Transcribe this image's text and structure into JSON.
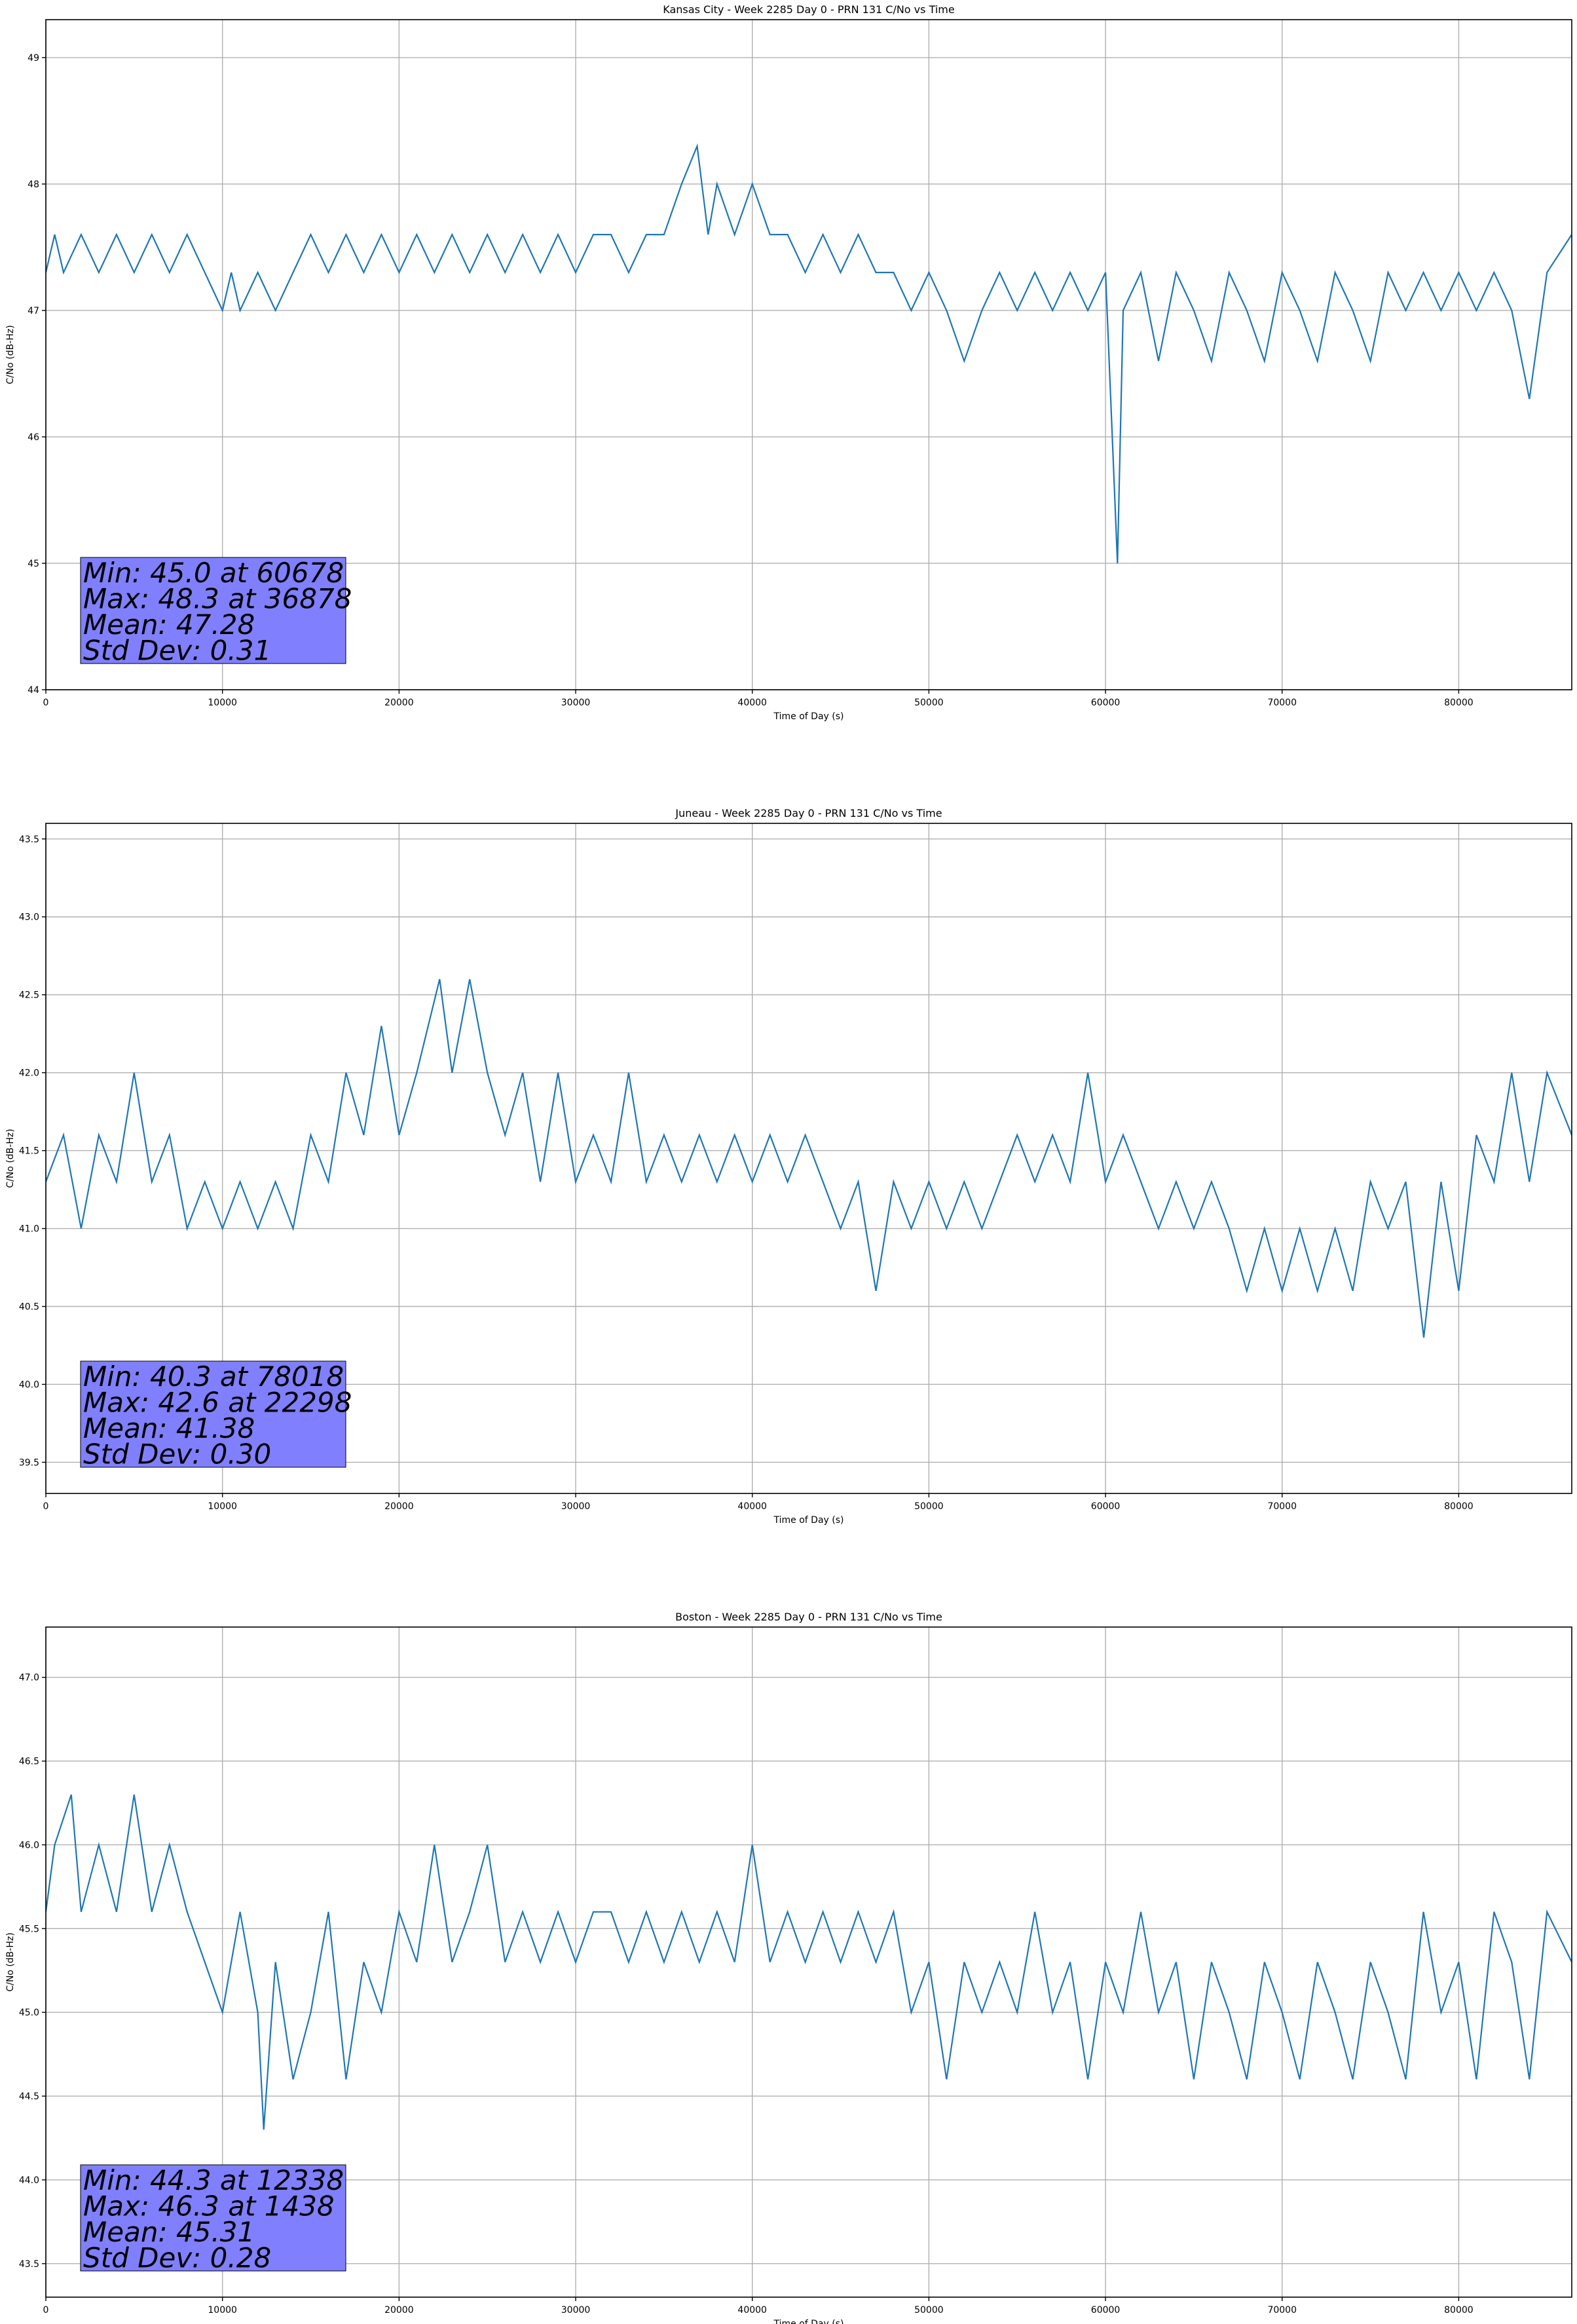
{
  "chart_data": [
    {
      "type": "line",
      "title": "Kansas City - Week 2285 Day 0 - PRN 131 C/No vs Time",
      "xlabel": "Time of Day (s)",
      "ylabel": "C/No (dB-Hz)",
      "xlim": [
        0,
        86400
      ],
      "ylim": [
        44.0,
        49.3
      ],
      "xticks": [
        0,
        10000,
        20000,
        30000,
        40000,
        50000,
        60000,
        70000,
        80000
      ],
      "yticks": [
        44,
        45,
        46,
        47,
        48,
        49
      ],
      "ytick_labels": [
        "44",
        "45",
        "46",
        "47",
        "48",
        "49"
      ],
      "grid": true,
      "line_color": "#1f77b4",
      "stats": [
        "Min: 45.0 at 60678",
        "Max: 48.3 at 36878",
        "Mean: 47.28",
        "Std Dev: 0.31"
      ],
      "series": [
        {
          "name": "C/No",
          "x": [
            0,
            500,
            1000,
            2000,
            3000,
            4000,
            5000,
            6000,
            7000,
            8000,
            9000,
            10000,
            10500,
            11000,
            12000,
            13000,
            14000,
            15000,
            16000,
            17000,
            18000,
            19000,
            20000,
            21000,
            22000,
            23000,
            24000,
            25000,
            26000,
            27000,
            28000,
            29000,
            30000,
            31000,
            32000,
            33000,
            34000,
            35000,
            36000,
            36878,
            37500,
            38000,
            39000,
            40000,
            41000,
            42000,
            43000,
            44000,
            45000,
            46000,
            47000,
            48000,
            49000,
            50000,
            51000,
            52000,
            53000,
            54000,
            55000,
            56000,
            57000,
            58000,
            59000,
            60000,
            60678,
            61000,
            62000,
            63000,
            64000,
            65000,
            66000,
            67000,
            68000,
            69000,
            70000,
            71000,
            72000,
            73000,
            74000,
            75000,
            76000,
            77000,
            78000,
            79000,
            80000,
            81000,
            82000,
            83000,
            84000,
            85000,
            86400
          ],
          "y": [
            47.3,
            47.6,
            47.3,
            47.6,
            47.3,
            47.6,
            47.3,
            47.6,
            47.3,
            47.6,
            47.3,
            47.0,
            47.3,
            47.0,
            47.3,
            47.0,
            47.3,
            47.6,
            47.3,
            47.6,
            47.3,
            47.6,
            47.3,
            47.6,
            47.3,
            47.6,
            47.3,
            47.6,
            47.3,
            47.6,
            47.3,
            47.6,
            47.3,
            47.6,
            47.6,
            47.3,
            47.6,
            47.6,
            48.0,
            48.3,
            47.6,
            48.0,
            47.6,
            48.0,
            47.6,
            47.6,
            47.3,
            47.6,
            47.3,
            47.6,
            47.3,
            47.3,
            47.0,
            47.3,
            47.0,
            46.6,
            47.0,
            47.3,
            47.0,
            47.3,
            47.0,
            47.3,
            47.0,
            47.3,
            45.0,
            47.0,
            47.3,
            46.6,
            47.3,
            47.0,
            46.6,
            47.3,
            47.0,
            46.6,
            47.3,
            47.0,
            46.6,
            47.3,
            47.0,
            46.6,
            47.3,
            47.0,
            47.3,
            47.0,
            47.3,
            47.0,
            47.3,
            47.0,
            46.3,
            47.3,
            47.6
          ]
        }
      ]
    },
    {
      "type": "line",
      "title": "Juneau - Week 2285 Day 0 - PRN 131 C/No vs Time",
      "xlabel": "Time of Day (s)",
      "ylabel": "C/No (dB-Hz)",
      "xlim": [
        0,
        86400
      ],
      "ylim": [
        39.3,
        43.6
      ],
      "xticks": [
        0,
        10000,
        20000,
        30000,
        40000,
        50000,
        60000,
        70000,
        80000
      ],
      "yticks": [
        39.5,
        40.0,
        40.5,
        41.0,
        41.5,
        42.0,
        42.5,
        43.0,
        43.5
      ],
      "ytick_labels": [
        "39.5",
        "40.0",
        "40.5",
        "41.0",
        "41.5",
        "42.0",
        "42.5",
        "43.0",
        "43.5"
      ],
      "grid": true,
      "line_color": "#1f77b4",
      "stats": [
        "Min: 40.3 at 78018",
        "Max: 42.6 at 22298",
        "Mean: 41.38",
        "Std Dev: 0.30"
      ],
      "series": [
        {
          "name": "C/No",
          "x": [
            0,
            1000,
            2000,
            3000,
            4000,
            5000,
            6000,
            7000,
            8000,
            9000,
            10000,
            11000,
            12000,
            13000,
            14000,
            15000,
            16000,
            17000,
            18000,
            19000,
            20000,
            21000,
            22298,
            23000,
            24000,
            25000,
            26000,
            27000,
            28000,
            29000,
            30000,
            31000,
            32000,
            33000,
            34000,
            35000,
            36000,
            37000,
            38000,
            39000,
            40000,
            41000,
            42000,
            43000,
            44000,
            45000,
            46000,
            47000,
            48000,
            49000,
            50000,
            51000,
            52000,
            53000,
            54000,
            55000,
            56000,
            57000,
            58000,
            59000,
            60000,
            61000,
            62000,
            63000,
            64000,
            65000,
            66000,
            67000,
            68000,
            69000,
            70000,
            71000,
            72000,
            73000,
            74000,
            75000,
            76000,
            77000,
            78018,
            79000,
            80000,
            81000,
            82000,
            83000,
            84000,
            85000,
            86400
          ],
          "y": [
            41.3,
            41.6,
            41.0,
            41.6,
            41.3,
            42.0,
            41.3,
            41.6,
            41.0,
            41.3,
            41.0,
            41.3,
            41.0,
            41.3,
            41.0,
            41.6,
            41.3,
            42.0,
            41.6,
            42.3,
            41.6,
            42.0,
            42.6,
            42.0,
            42.6,
            42.0,
            41.6,
            42.0,
            41.3,
            42.0,
            41.3,
            41.6,
            41.3,
            42.0,
            41.3,
            41.6,
            41.3,
            41.6,
            41.3,
            41.6,
            41.3,
            41.6,
            41.3,
            41.6,
            41.3,
            41.0,
            41.3,
            40.6,
            41.3,
            41.0,
            41.3,
            41.0,
            41.3,
            41.0,
            41.3,
            41.6,
            41.3,
            41.6,
            41.3,
            42.0,
            41.3,
            41.6,
            41.3,
            41.0,
            41.3,
            41.0,
            41.3,
            41.0,
            40.6,
            41.0,
            40.6,
            41.0,
            40.6,
            41.0,
            40.6,
            41.3,
            41.0,
            41.3,
            40.3,
            41.3,
            40.6,
            41.6,
            41.3,
            42.0,
            41.3,
            42.0,
            41.6
          ]
        }
      ]
    },
    {
      "type": "line",
      "title": "Boston - Week 2285 Day 0 - PRN 131 C/No vs Time",
      "xlabel": "Time of Day (s)",
      "ylabel": "C/No (dB-Hz)",
      "xlim": [
        0,
        86400
      ],
      "ylim": [
        43.3,
        47.3
      ],
      "xticks": [
        0,
        10000,
        20000,
        30000,
        40000,
        50000,
        60000,
        70000,
        80000
      ],
      "yticks": [
        43.5,
        44.0,
        44.5,
        45.0,
        45.5,
        46.0,
        46.5,
        47.0
      ],
      "ytick_labels": [
        "43.5",
        "44.0",
        "44.5",
        "45.0",
        "45.5",
        "46.0",
        "46.5",
        "47.0"
      ],
      "grid": true,
      "line_color": "#1f77b4",
      "stats": [
        "Min: 44.3 at 12338",
        "Max: 46.3 at 1438",
        "Mean: 45.31",
        "Std Dev: 0.28"
      ],
      "series": [
        {
          "name": "C/No",
          "x": [
            0,
            500,
            1438,
            2000,
            3000,
            4000,
            5000,
            6000,
            7000,
            8000,
            9000,
            10000,
            11000,
            12000,
            12338,
            13000,
            14000,
            15000,
            16000,
            17000,
            18000,
            19000,
            20000,
            21000,
            22000,
            23000,
            24000,
            25000,
            26000,
            27000,
            28000,
            29000,
            30000,
            31000,
            32000,
            33000,
            34000,
            35000,
            36000,
            37000,
            38000,
            39000,
            40000,
            41000,
            42000,
            43000,
            44000,
            45000,
            46000,
            47000,
            48000,
            49000,
            50000,
            51000,
            52000,
            53000,
            54000,
            55000,
            56000,
            57000,
            58000,
            59000,
            60000,
            61000,
            62000,
            63000,
            64000,
            65000,
            66000,
            67000,
            68000,
            69000,
            70000,
            71000,
            72000,
            73000,
            74000,
            75000,
            76000,
            77000,
            78000,
            79000,
            80000,
            81000,
            82000,
            83000,
            84000,
            85000,
            86400
          ],
          "y": [
            45.6,
            46.0,
            46.3,
            45.6,
            46.0,
            45.6,
            46.3,
            45.6,
            46.0,
            45.6,
            45.3,
            45.0,
            45.6,
            45.0,
            44.3,
            45.3,
            44.6,
            45.0,
            45.6,
            44.6,
            45.3,
            45.0,
            45.6,
            45.3,
            46.0,
            45.3,
            45.6,
            46.0,
            45.3,
            45.6,
            45.3,
            45.6,
            45.3,
            45.6,
            45.6,
            45.3,
            45.6,
            45.3,
            45.6,
            45.3,
            45.6,
            45.3,
            46.0,
            45.3,
            45.6,
            45.3,
            45.6,
            45.3,
            45.6,
            45.3,
            45.6,
            45.0,
            45.3,
            44.6,
            45.3,
            45.0,
            45.3,
            45.0,
            45.6,
            45.0,
            45.3,
            44.6,
            45.3,
            45.0,
            45.6,
            45.0,
            45.3,
            44.6,
            45.3,
            45.0,
            44.6,
            45.3,
            45.0,
            44.6,
            45.3,
            45.0,
            44.6,
            45.3,
            45.0,
            44.6,
            45.6,
            45.0,
            45.3,
            44.6,
            45.6,
            45.3,
            44.6,
            45.6,
            45.3
          ]
        }
      ]
    }
  ]
}
